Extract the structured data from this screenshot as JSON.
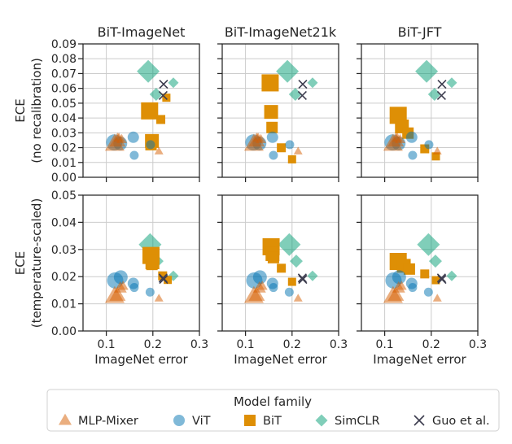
{
  "chart_data": {
    "type": "scatter",
    "layout": "grid 2 rows x 3 columns",
    "columns": [
      {
        "title": "BiT-ImageNet"
      },
      {
        "title": "BiT-ImageNet21k"
      },
      {
        "title": "BiT-JFT"
      }
    ],
    "rows": [
      {
        "key": "no_recalibration",
        "ylabel": [
          "ECE",
          "(no recalibration)"
        ],
        "ylim": [
          0,
          0.09
        ],
        "yticks": [
          0,
          0.01,
          0.02,
          0.03,
          0.04,
          0.05,
          0.06,
          0.07,
          0.08,
          0.09
        ],
        "ytick_labels": [
          "0.00",
          "0.01",
          "0.02",
          "0.03",
          "0.04",
          "0.05",
          "0.06",
          "0.07",
          "0.08",
          "0.09"
        ]
      },
      {
        "key": "temperature_scaled",
        "ylabel": [
          "ECE",
          "(temperature-scaled)"
        ],
        "ylim": [
          0,
          0.05
        ],
        "yticks": [
          0,
          0.01,
          0.02,
          0.03,
          0.04,
          0.05
        ],
        "ytick_labels": [
          "0.00",
          "0.01",
          "0.02",
          "0.03",
          "0.04",
          "0.05"
        ]
      }
    ],
    "xlabel": "ImageNet error",
    "xlim": [
      0.05,
      0.3
    ],
    "xticks": [
      0.1,
      0.2,
      0.3
    ],
    "xtick_labels": [
      "0.1",
      "0.2",
      "0.3"
    ],
    "grid": true,
    "legend": {
      "title": "Model family",
      "placement": "bottom-center",
      "entries": [
        {
          "label": "MLP-Mixer",
          "marker": "triangle",
          "color": "#D55E00",
          "opacity": 0.5
        },
        {
          "label": "ViT",
          "marker": "circle",
          "color": "#0173B2",
          "opacity": 0.5
        },
        {
          "label": "BiT",
          "marker": "square",
          "color": "#DE8F05",
          "opacity": 1
        },
        {
          "label": "SimCLR",
          "marker": "diamond",
          "color": "#029E73",
          "opacity": 0.5
        },
        {
          "label": "Guo et al.",
          "marker": "x",
          "color": "#3D3D4F",
          "opacity": 1
        }
      ]
    },
    "series": [
      {
        "name": "SimCLR",
        "marker": "diamond",
        "color": "#029E73",
        "opacity": 0.5,
        "data": {
          "no_recalibration": [
            {
              "x": 0.19,
              "y": 0.0715,
              "model_size": 5
            },
            {
              "x": 0.207,
              "y": 0.056,
              "model_size": 3
            },
            {
              "x": 0.244,
              "y": 0.0638,
              "model_size": 2
            }
          ],
          "temperature_scaled": [
            {
              "x": 0.194,
              "y": 0.0318,
              "model_size": 5
            },
            {
              "x": 0.209,
              "y": 0.0257,
              "model_size": 3
            },
            {
              "x": 0.244,
              "y": 0.0203,
              "model_size": 2
            }
          ]
        }
      },
      {
        "name": "BiT",
        "marker": "square",
        "color": "#DE8F05",
        "opacity": 1,
        "data_by_column": [
          {
            "no_recalibration": [
              {
                "x": 0.193,
                "y": 0.0448,
                "model_size": 5
              },
              {
                "x": 0.198,
                "y": 0.0245,
                "model_size": 4
              },
              {
                "x": 0.196,
                "y": 0.022,
                "model_size": 3
              },
              {
                "x": 0.217,
                "y": 0.039,
                "model_size": 2
              },
              {
                "x": 0.229,
                "y": 0.0537,
                "model_size": 1
              }
            ],
            "temperature_scaled": [
              {
                "x": 0.196,
                "y": 0.0278,
                "model_size": 5
              },
              {
                "x": 0.199,
                "y": 0.0253,
                "model_size": 4
              },
              {
                "x": 0.198,
                "y": 0.0245,
                "model_size": 3
              },
              {
                "x": 0.221,
                "y": 0.0203,
                "model_size": 2
              },
              {
                "x": 0.232,
                "y": 0.0188,
                "model_size": 1
              }
            ]
          },
          {
            "no_recalibration": [
              {
                "x": 0.153,
                "y": 0.0637,
                "model_size": 5
              },
              {
                "x": 0.155,
                "y": 0.0441,
                "model_size": 4
              },
              {
                "x": 0.157,
                "y": 0.0336,
                "model_size": 3
              },
              {
                "x": 0.177,
                "y": 0.0199,
                "model_size": 2
              },
              {
                "x": 0.2,
                "y": 0.0121,
                "model_size": 1
              }
            ],
            "temperature_scaled": [
              {
                "x": 0.155,
                "y": 0.031,
                "model_size": 5
              },
              {
                "x": 0.158,
                "y": 0.0283,
                "model_size": 4
              },
              {
                "x": 0.16,
                "y": 0.027,
                "model_size": 3
              },
              {
                "x": 0.177,
                "y": 0.0231,
                "model_size": 2
              },
              {
                "x": 0.2,
                "y": 0.0181,
                "model_size": 1
              }
            ]
          },
          {
            "no_recalibration": [
              {
                "x": 0.129,
                "y": 0.0418,
                "model_size": 5
              },
              {
                "x": 0.137,
                "y": 0.0343,
                "model_size": 4
              },
              {
                "x": 0.15,
                "y": 0.0298,
                "model_size": 3
              },
              {
                "x": 0.186,
                "y": 0.0192,
                "model_size": 2
              },
              {
                "x": 0.21,
                "y": 0.0141,
                "model_size": 1
              }
            ],
            "temperature_scaled": [
              {
                "x": 0.129,
                "y": 0.0256,
                "model_size": 5
              },
              {
                "x": 0.141,
                "y": 0.024,
                "model_size": 4
              },
              {
                "x": 0.153,
                "y": 0.0228,
                "model_size": 3
              },
              {
                "x": 0.186,
                "y": 0.021,
                "model_size": 2
              },
              {
                "x": 0.21,
                "y": 0.0187,
                "model_size": 1
              }
            ]
          }
        ]
      },
      {
        "name": "ViT",
        "marker": "circle",
        "color": "#0173B2",
        "opacity": 0.5,
        "data": {
          "no_recalibration": [
            {
              "x": 0.117,
              "y": 0.0235,
              "model_size": 5
            },
            {
              "x": 0.13,
              "y": 0.0228,
              "model_size": 4
            },
            {
              "x": 0.158,
              "y": 0.027,
              "model_size": 3
            },
            {
              "x": 0.16,
              "y": 0.0148,
              "model_size": 2
            },
            {
              "x": 0.195,
              "y": 0.022,
              "model_size": 2
            }
          ],
          "temperature_scaled": [
            {
              "x": 0.119,
              "y": 0.0186,
              "model_size": 5
            },
            {
              "x": 0.131,
              "y": 0.0198,
              "model_size": 4
            },
            {
              "x": 0.158,
              "y": 0.0175,
              "model_size": 3
            },
            {
              "x": 0.16,
              "y": 0.016,
              "model_size": 2
            },
            {
              "x": 0.194,
              "y": 0.0143,
              "model_size": 2
            }
          ]
        }
      },
      {
        "name": "MLP-Mixer",
        "marker": "triangle",
        "color": "#D55E00",
        "opacity": 0.5,
        "data": {
          "no_recalibration": [
            {
              "x": 0.118,
              "y": 0.0225,
              "model_size": 5
            },
            {
              "x": 0.124,
              "y": 0.0245,
              "model_size": 4
            },
            {
              "x": 0.127,
              "y": 0.0265,
              "model_size": 2
            },
            {
              "x": 0.133,
              "y": 0.0255,
              "model_size": 2
            },
            {
              "x": 0.213,
              "y": 0.0175,
              "model_size": 1
            }
          ],
          "temperature_scaled": [
            {
              "x": 0.118,
              "y": 0.0128,
              "model_size": 5
            },
            {
              "x": 0.124,
              "y": 0.0132,
              "model_size": 4
            },
            {
              "x": 0.13,
              "y": 0.0158,
              "model_size": 3
            },
            {
              "x": 0.136,
              "y": 0.0165,
              "model_size": 2
            },
            {
              "x": 0.213,
              "y": 0.012,
              "model_size": 1
            }
          ]
        }
      },
      {
        "name": "Guo et al.",
        "marker": "x",
        "color": "#3D3D4F",
        "opacity": 1,
        "data": {
          "no_recalibration": [
            {
              "x": 0.223,
              "y": 0.0628,
              "model_size": 1
            },
            {
              "x": 0.222,
              "y": 0.0552,
              "model_size": 1
            }
          ],
          "temperature_scaled": [
            {
              "x": 0.222,
              "y": 0.0195,
              "model_size": 1
            },
            {
              "x": 0.223,
              "y": 0.019,
              "model_size": 1
            }
          ]
        }
      }
    ]
  }
}
